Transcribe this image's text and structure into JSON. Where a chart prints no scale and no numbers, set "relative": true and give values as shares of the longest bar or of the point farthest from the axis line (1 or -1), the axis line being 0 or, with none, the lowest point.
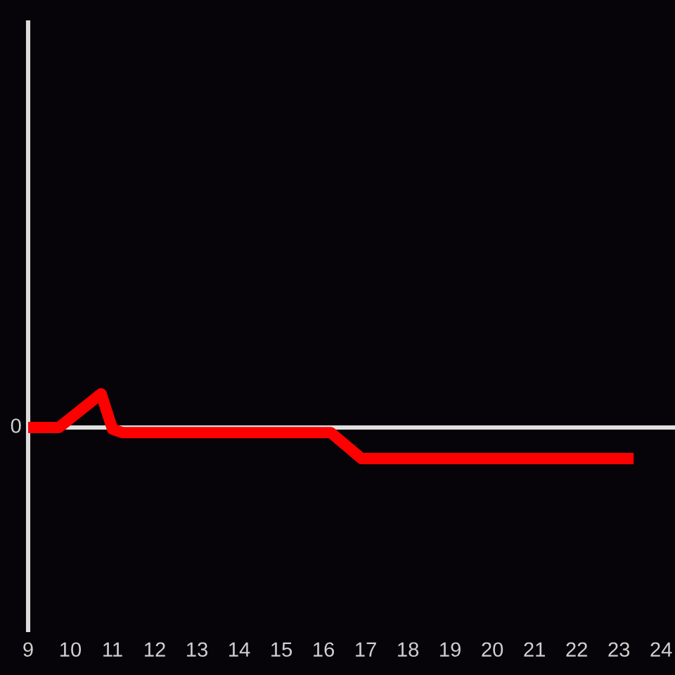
{
  "chart_data": {
    "type": "line",
    "relative": true,
    "color": "#ff0000",
    "line_style": "solid",
    "x": [
      9.0,
      9.73,
      10.73,
      11.0,
      11.23,
      16.17,
      16.9,
      23.35
    ],
    "values": [
      0,
      0,
      1,
      -0.05,
      -0.15,
      -0.15,
      -0.92,
      -0.92
    ],
    "xlim": [
      9,
      24.33
    ],
    "xticks": [
      9,
      10,
      11,
      12,
      13,
      14,
      15,
      16,
      17,
      18,
      19,
      20,
      21,
      22,
      23,
      24
    ],
    "ref_lines": [
      {
        "axis": "y",
        "value": 0,
        "label": "0",
        "color": "#e0e0e0"
      }
    ]
  }
}
